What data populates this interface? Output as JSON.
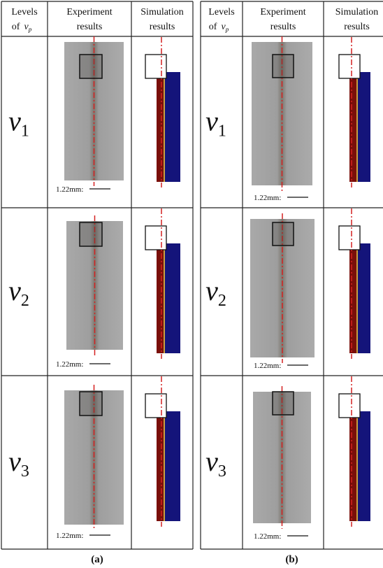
{
  "panels": [
    {
      "label": "(a)",
      "header": {
        "level": {
          "line1": "Levels",
          "line2": "of",
          "var": "v",
          "sub": "p"
        },
        "experiment": [
          "Experiment",
          "results"
        ],
        "simulation": [
          "Simulation",
          "results"
        ]
      },
      "rows": [
        {
          "var": "v",
          "sub": "1",
          "scale": "1.22mm:"
        },
        {
          "var": "v",
          "sub": "2",
          "scale": "1.22mm:"
        },
        {
          "var": "v",
          "sub": "3",
          "scale": "1.22mm:"
        }
      ]
    },
    {
      "label": "(b)",
      "header": {
        "level": {
          "line1": "Levels",
          "line2": "of",
          "var": "v",
          "sub": "p"
        },
        "experiment": [
          "Experiment",
          "results"
        ],
        "simulation": [
          "Simulation",
          "results"
        ]
      },
      "rows": [
        {
          "var": "v",
          "sub": "1",
          "scale": "1.22mm:"
        },
        {
          "var": "v",
          "sub": "2",
          "scale": "1.22mm:"
        },
        {
          "var": "v",
          "sub": "3",
          "scale": "1.22mm:"
        }
      ]
    }
  ]
}
